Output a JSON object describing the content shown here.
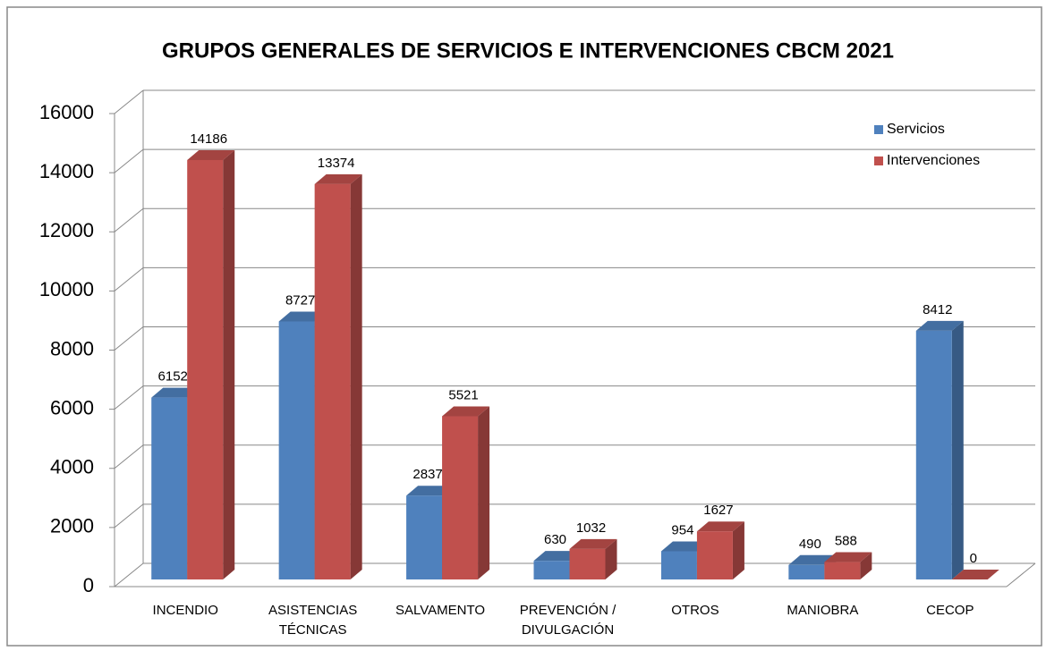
{
  "chart_data": {
    "type": "bar3d",
    "title": "GRUPOS GENERALES DE SERVICIOS E INTERVENCIONES CBCM 2021",
    "categories": [
      "INCENDIO",
      "ASISTENCIAS TÉCNICAS",
      "SALVAMENTO",
      "PREVENCIÓN / DIVULGACIÓN",
      "OTROS",
      "MANIOBRA",
      "CECOP"
    ],
    "series": [
      {
        "name": "Servicios",
        "color": "#4f81bd",
        "values": [
          6152,
          8727,
          2837,
          630,
          954,
          490,
          8412
        ]
      },
      {
        "name": "Intervenciones",
        "color": "#c0504d",
        "values": [
          14186,
          13374,
          5521,
          1032,
          1627,
          588,
          0
        ]
      }
    ],
    "ylim": [
      0,
      16000
    ],
    "yticks": [
      0,
      2000,
      4000,
      6000,
      8000,
      10000,
      12000,
      14000,
      16000
    ],
    "grid": true,
    "legend": "top-right"
  }
}
